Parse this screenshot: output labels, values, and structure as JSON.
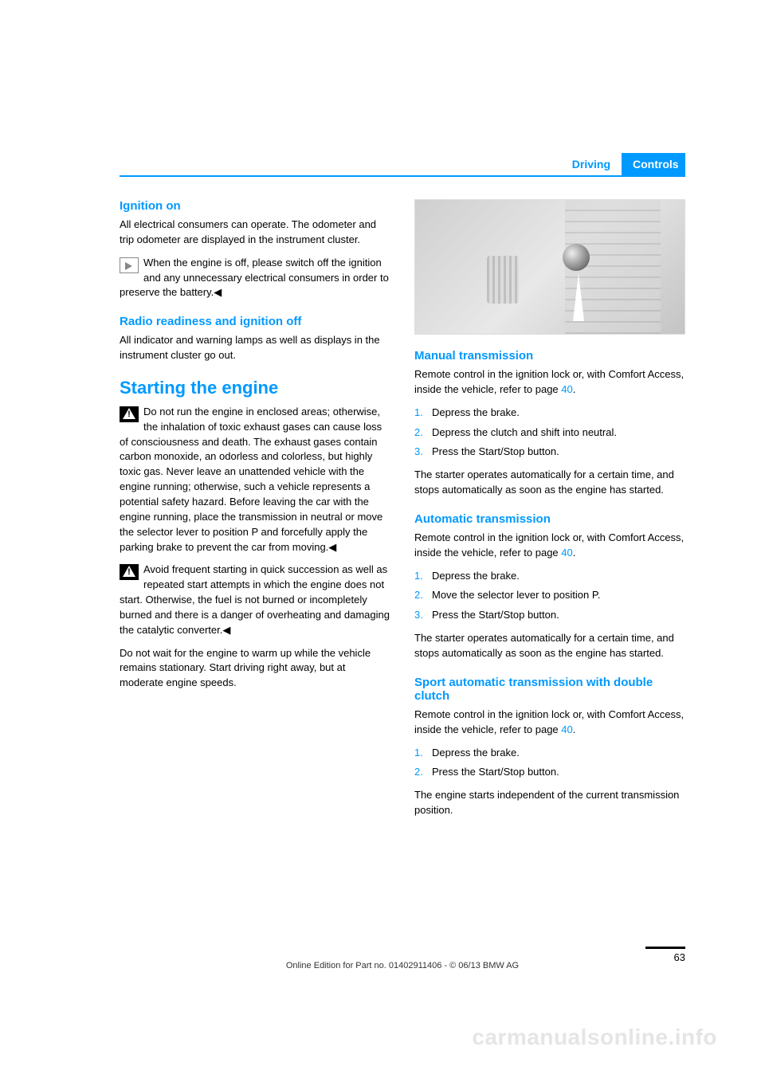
{
  "header": {
    "section": "Driving",
    "chapter": "Controls"
  },
  "left": {
    "ignition_on": {
      "title": "Ignition on",
      "p1": "All electrical consumers can operate. The odometer and trip odometer are displayed in the instrument cluster.",
      "note": "When the engine is off, please switch off the ignition and any unnecessary electrical consumers in order to preserve the battery.◀"
    },
    "radio_off": {
      "title": "Radio readiness and ignition off",
      "p1": "All indicator and warning lamps as well as displays in the instrument cluster go out."
    },
    "starting": {
      "title": "Starting the engine",
      "warn1": "Do not run the engine in enclosed areas; otherwise, the inhalation of toxic exhaust gases can cause loss of consciousness and death. The exhaust gases contain carbon monoxide, an odorless and colorless, but highly toxic gas. Never leave an unattended vehicle with the engine running; otherwise, such a vehicle represents a potential safety hazard. Before leaving the car with the engine running, place the transmission in neutral or move the selector lever to position P and forcefully apply the parking brake to prevent the car from moving.◀",
      "warn2": "Avoid frequent starting in quick succession as well as repeated start attempts in which the engine does not start. Otherwise, the fuel is not burned or incompletely burned and there is a danger of overheating and damaging the catalytic converter.◀",
      "p3": "Do not wait for the engine to warm up while the vehicle remains stationary. Start driving right away, but at moderate engine speeds."
    }
  },
  "right": {
    "manual": {
      "title": "Manual transmission",
      "intro_a": "Remote control in the ignition lock or, with Comfort Access, inside the vehicle, refer to page ",
      "intro_ref": "40",
      "intro_b": ".",
      "steps": [
        "Depress the brake.",
        "Depress the clutch and shift into neutral.",
        "Press the Start/Stop button."
      ],
      "after": "The starter operates automatically for a certain time, and stops automatically as soon as the engine has started."
    },
    "auto": {
      "title": "Automatic transmission",
      "intro_a": "Remote control in the ignition lock or, with Comfort Access, inside the vehicle, refer to page ",
      "intro_ref": "40",
      "intro_b": ".",
      "steps": [
        "Depress the brake.",
        "Move the selector lever to position P.",
        "Press the Start/Stop button."
      ],
      "after": "The starter operates automatically for a certain time, and stops automatically as soon as the engine has started."
    },
    "sport": {
      "title": "Sport automatic transmission with double clutch",
      "intro_a": "Remote control in the ignition lock or, with Comfort Access, inside the vehicle, refer to page ",
      "intro_ref": "40",
      "intro_b": ".",
      "steps": [
        "Depress the brake.",
        "Press the Start/Stop button."
      ],
      "after": "The engine starts independent of the current transmission position."
    }
  },
  "footer": {
    "line": "Online Edition for Part no. 01402911406 - © 06/13 BMW AG",
    "page": "63"
  },
  "watermark": "carmanualsonline.info"
}
